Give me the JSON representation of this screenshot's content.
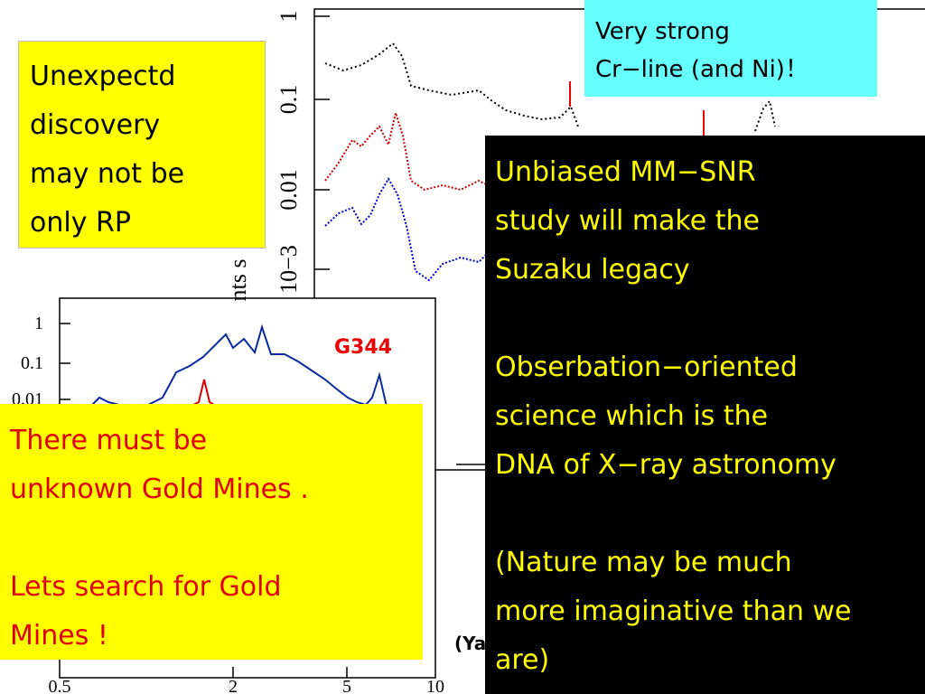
{
  "plot_top": {
    "yticks": [
      "1",
      "0.1",
      "0.01",
      "10−3"
    ],
    "axis_label": "nts s"
  },
  "plot_bottom": {
    "label": "G344",
    "yticks": [
      "1",
      "0.1",
      "0.01"
    ],
    "xticks": [
      "0.5",
      "2",
      "5",
      "10"
    ]
  },
  "credit": "(Ya",
  "boxes": {
    "top_left": {
      "paragraphs": [
        [
          "Unexpectd",
          "discovery",
          "may not be",
          "only RP"
        ]
      ]
    },
    "top_right": {
      "paragraphs": [
        [
          "Very strong",
          "Cr−line  (and Ni)！"
        ]
      ]
    },
    "bottom_left": {
      "paragraphs": [
        [
          "There must be",
          "unknown Gold Mines ."
        ],
        [
          "Lets search for Gold",
          "Mines !"
        ]
      ]
    },
    "right": {
      "paragraphs": [
        [
          "Unbiased  MM−SNR",
          "study will make the",
          "Suzaku legacy"
        ],
        [
          "Obserbation−oriented",
          "science  which is the",
          "DNA of X−ray astronomy"
        ],
        [
          "(Nature may be much",
          "more imaginative than we",
          "are)"
        ]
      ]
    }
  }
}
